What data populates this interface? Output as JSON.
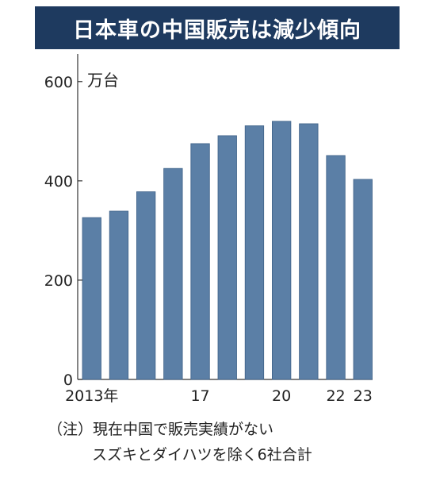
{
  "title": "日本車の中国販売は減少傾向",
  "unit": "万台",
  "notes": [
    "（注）現在中国で販売実績がない",
    "スズキとダイハツを除く6社合計"
  ],
  "colors": {
    "bar": "#5b7fa6",
    "bar_edge": "#3f6288",
    "title_bg": "#1e3a5f"
  },
  "chart_data": {
    "type": "bar",
    "title": "日本車の中国販売は減少傾向",
    "ylabel": "万台",
    "ylim": [
      0,
      630
    ],
    "yticks": [
      0,
      200,
      400,
      600
    ],
    "categories": [
      "2013年",
      "",
      "",
      "",
      "17",
      "",
      "",
      "20",
      "",
      "22",
      "23"
    ],
    "values": [
      326,
      339,
      378,
      425,
      475,
      491,
      511,
      520,
      515,
      451,
      403
    ],
    "grid": false,
    "legend": "none"
  }
}
